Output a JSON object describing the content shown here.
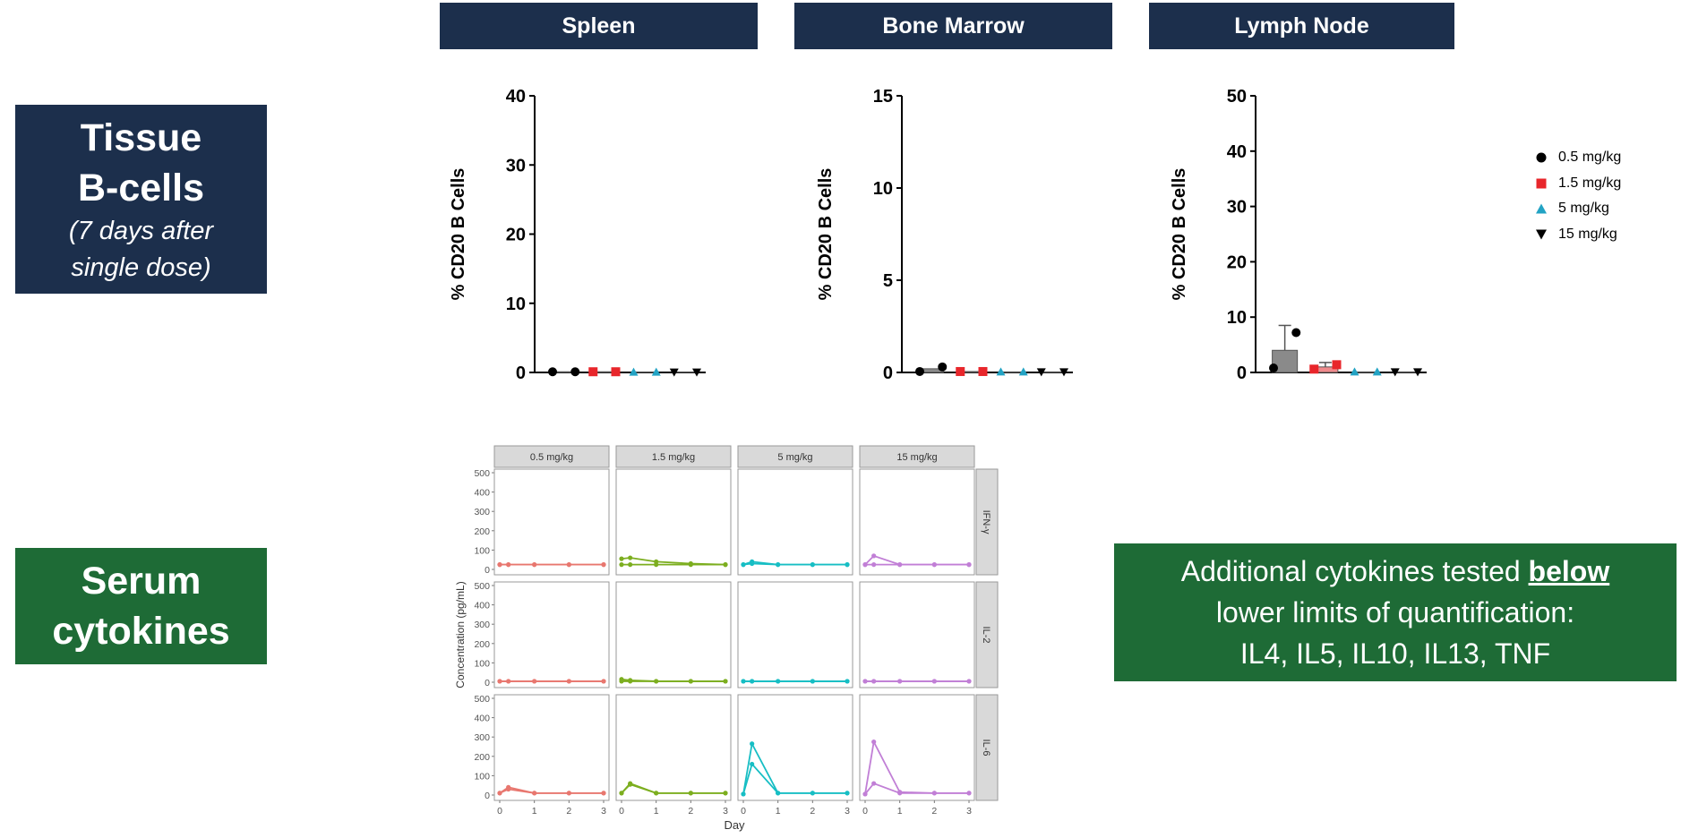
{
  "labels": {
    "tissue_title_1": "Tissue",
    "tissue_title_2": "B-cells",
    "tissue_sub_1": "(7 days after",
    "tissue_sub_2": "single dose)",
    "serum_title_1": "Serum",
    "serum_title_2": "cytokines",
    "note_pre": "Additional cytokines tested ",
    "note_emph": "below",
    "note_line2": "lower limits of quantification:",
    "note_line3": "IL4, IL5, IL10, IL13, TNF"
  },
  "colors": {
    "navy": "#1c2f4c",
    "green": "#1e6b36",
    "dose_05": "#000000",
    "dose_15": "#e8262b",
    "dose_5": "#22a3c4",
    "dose_15mg": "#000000"
  },
  "legend": [
    {
      "label": "0.5 mg/kg",
      "marker": "circle",
      "color": "#000000"
    },
    {
      "label": "1.5 mg/kg",
      "marker": "square",
      "color": "#e8262b"
    },
    {
      "label": "5 mg/kg",
      "marker": "triangle-up",
      "color": "#22a3c4"
    },
    {
      "label": "15 mg/kg",
      "marker": "triangle-down",
      "color": "#000000"
    }
  ],
  "chart_data": [
    {
      "type": "bar",
      "title": "Spleen",
      "ylabel": "% CD20 B Cells",
      "ylim": [
        0,
        40
      ],
      "yticks": [
        "0",
        "10",
        "20",
        "30",
        "40"
      ],
      "groups": [
        "0.5 mg/kg",
        "1.5 mg/kg",
        "5 mg/kg",
        "15 mg/kg"
      ],
      "means": [
        0.1,
        0.1,
        0.05,
        0.05
      ],
      "points": [
        [
          0.1,
          0.1
        ],
        [
          0.1,
          0.1
        ],
        [
          0.05,
          0.05
        ],
        [
          0.05,
          0.05
        ]
      ]
    },
    {
      "type": "bar",
      "title": "Bone Marrow",
      "ylabel": "% CD20 B Cells",
      "ylim": [
        0,
        15
      ],
      "yticks": [
        "0",
        "5",
        "10",
        "15"
      ],
      "groups": [
        "0.5 mg/kg",
        "1.5 mg/kg",
        "5 mg/kg",
        "15 mg/kg"
      ],
      "means": [
        0.2,
        0.05,
        0.03,
        0.03
      ],
      "points": [
        [
          0.05,
          0.3
        ],
        [
          0.05,
          0.05
        ],
        [
          0.03,
          0.03
        ],
        [
          0.03,
          0.03
        ]
      ]
    },
    {
      "type": "bar",
      "title": "Lymph Node",
      "ylabel": "% CD20 B Cells",
      "ylim": [
        0,
        50
      ],
      "yticks": [
        "0",
        "10",
        "20",
        "30",
        "40",
        "50"
      ],
      "groups": [
        "0.5 mg/kg",
        "1.5 mg/kg",
        "5 mg/kg",
        "15 mg/kg"
      ],
      "means": [
        4,
        1,
        0.1,
        0.1
      ],
      "errors": [
        4.5,
        0.8,
        0,
        0
      ],
      "points": [
        [
          0.8,
          7.2
        ],
        [
          0.6,
          1.4
        ],
        [
          0.1,
          0.1
        ],
        [
          0.1,
          0.1
        ]
      ]
    },
    {
      "type": "line",
      "title": "Serum cytokines",
      "xlabel": "Day",
      "ylabel": "Concentration (pg/mL)",
      "ylim": [
        0,
        500
      ],
      "yticks": [
        "0",
        "100",
        "200",
        "300",
        "400",
        "500"
      ],
      "xticks": [
        "0",
        "1",
        "2",
        "3"
      ],
      "columns": [
        "0.5 mg/kg",
        "1.5 mg/kg",
        "5 mg/kg",
        "15 mg/kg"
      ],
      "rows": [
        "IFN-γ",
        "IL-2",
        "IL-6"
      ],
      "column_colors": [
        "#e8776f",
        "#7cae1f",
        "#17bec4",
        "#c17fd6"
      ],
      "x": [
        0,
        0.25,
        1,
        2,
        3
      ],
      "panels": [
        [
          [
            [
              25,
              25,
              25,
              25,
              25
            ],
            [
              25,
              25,
              25,
              25,
              25
            ]
          ],
          [
            [
              55,
              60,
              40,
              30,
              25
            ],
            [
              25,
              25,
              25,
              25,
              25
            ]
          ],
          [
            [
              25,
              40,
              25,
              25,
              25
            ],
            [
              25,
              30,
              25,
              25,
              25
            ]
          ],
          [
            [
              25,
              70,
              25,
              25,
              25
            ],
            [
              25,
              25,
              25,
              25,
              25
            ]
          ]
        ],
        [
          [
            [
              5,
              5,
              5,
              5,
              5
            ],
            [
              5,
              5,
              5,
              5,
              5
            ]
          ],
          [
            [
              15,
              10,
              5,
              5,
              5
            ],
            [
              5,
              5,
              5,
              5,
              5
            ]
          ],
          [
            [
              5,
              5,
              5,
              5,
              5
            ],
            [
              5,
              5,
              5,
              5,
              5
            ]
          ],
          [
            [
              5,
              5,
              5,
              5,
              5
            ],
            [
              5,
              5,
              5,
              5,
              5
            ]
          ]
        ],
        [
          [
            [
              10,
              40,
              10,
              10,
              10
            ],
            [
              10,
              30,
              10,
              10,
              10
            ]
          ],
          [
            [
              10,
              60,
              10,
              10,
              10
            ],
            [
              10,
              55,
              10,
              10,
              10
            ]
          ],
          [
            [
              5,
              265,
              10,
              10,
              10
            ],
            [
              5,
              160,
              10,
              10,
              10
            ]
          ],
          [
            [
              5,
              275,
              15,
              10,
              10
            ],
            [
              5,
              60,
              10,
              10,
              10
            ]
          ]
        ]
      ]
    }
  ]
}
